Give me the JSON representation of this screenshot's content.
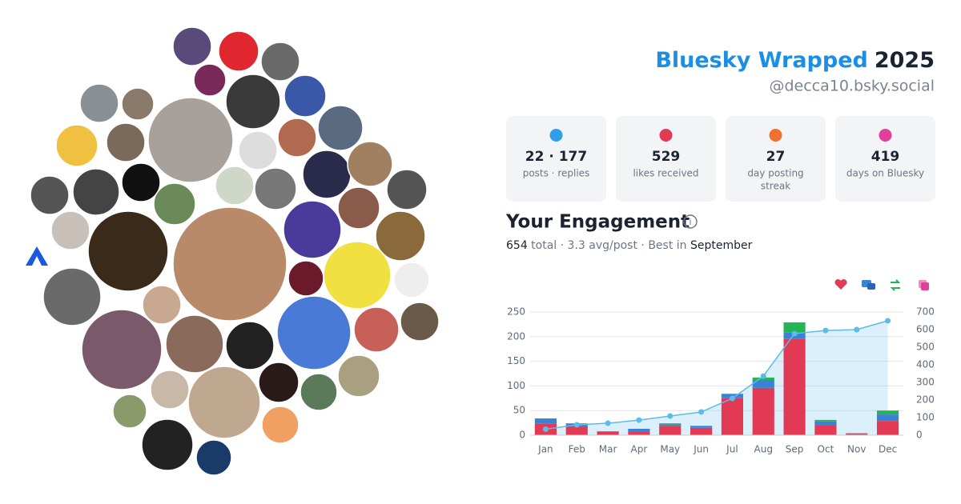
{
  "header": {
    "title": "Bluesky Wrapped",
    "year": "2025",
    "handle": "@decca10.bsky.social"
  },
  "stats": [
    {
      "value": "22 · 177",
      "label": [
        "posts · replies"
      ]
    },
    {
      "value": "529",
      "label": [
        "likes received"
      ]
    },
    {
      "value": "27",
      "label": [
        "day posting",
        "streak"
      ]
    },
    {
      "value": "419",
      "label": [
        "days on Bluesky"
      ]
    }
  ],
  "engagement": {
    "title": "Your Engagement",
    "summary": [
      "654",
      " total · 3.3 avg/post · Best in ",
      "September"
    ]
  },
  "chart_data": {
    "type": "bar",
    "categories": [
      "Jan",
      "Feb",
      "Mar",
      "Apr",
      "May",
      "Jun",
      "Jul",
      "Aug",
      "Sep",
      "Oct",
      "Nov",
      "Dec"
    ],
    "series": [
      {
        "color": "#e23a54",
        "values": [
          24,
          18,
          7,
          8,
          19,
          15,
          75,
          96,
          195,
          21,
          3,
          29
        ]
      },
      {
        "color": "#3b82d6",
        "values": [
          10,
          6,
          1,
          5,
          3,
          4,
          9,
          16,
          13,
          7,
          1,
          13
        ]
      },
      {
        "color": "#22b455",
        "values": [
          0,
          0,
          0,
          0,
          2,
          0,
          0,
          5,
          21,
          3,
          0,
          8
        ]
      },
      {
        "color": "#e0409a",
        "values": [
          0,
          0,
          0,
          0,
          0,
          0,
          0,
          0,
          0,
          0,
          0,
          0
        ]
      },
      {
        "color": "#5bbce8",
        "axis": "y2",
        "values": [
          34,
          59,
          68,
          86,
          109,
          132,
          209,
          336,
          577,
          595,
          600,
          650
        ]
      }
    ],
    "ylim": [
      0,
      250
    ],
    "yticks": [
      0,
      50,
      100,
      150,
      200,
      250
    ],
    "y2lim": [
      0,
      700
    ],
    "y2ticks": [
      0,
      100,
      200,
      300,
      400,
      500,
      600,
      700
    ],
    "grid": true
  }
}
